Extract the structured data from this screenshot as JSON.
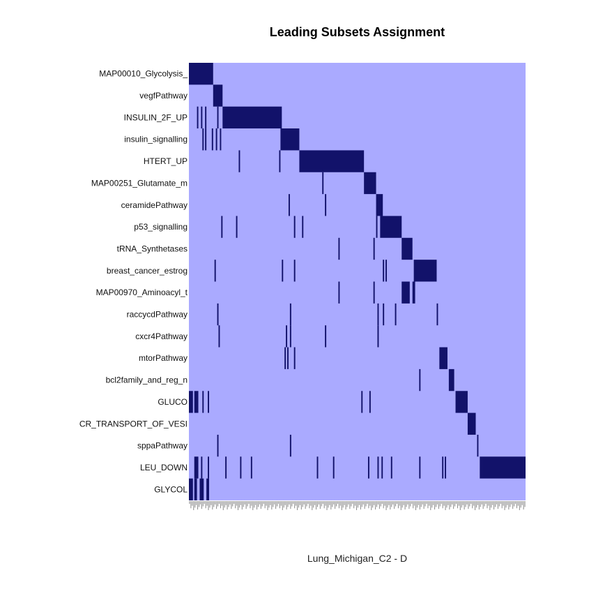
{
  "chart_data": {
    "type": "heatmap",
    "title": "Leading Subsets Assignment",
    "xlabel": "Lung_Michigan_C2 - D",
    "colors": {
      "background": "#aaaaff",
      "member": "#12126a",
      "tick": "#888888"
    },
    "n_genes": 250,
    "rows": [
      {
        "label": "MAP00010_Glycolysis_",
        "members": [
          [
            0,
            17
          ]
        ]
      },
      {
        "label": "vegfPathway",
        "members": [
          [
            18,
            24
          ]
        ]
      },
      {
        "label": "INSULIN_2F_UP",
        "members": [
          [
            6,
            6
          ],
          [
            9,
            9
          ],
          [
            12,
            12
          ],
          [
            21,
            21
          ],
          [
            25,
            68
          ]
        ]
      },
      {
        "label": "insulin_signalling",
        "members": [
          [
            10,
            10
          ],
          [
            12,
            12
          ],
          [
            17,
            17
          ],
          [
            20,
            20
          ],
          [
            23,
            23
          ],
          [
            68,
            81
          ]
        ]
      },
      {
        "label": "HTERT_UP",
        "members": [
          [
            37,
            37
          ],
          [
            67,
            67
          ],
          [
            82,
            129
          ]
        ]
      },
      {
        "label": "MAP00251_Glutamate_m",
        "members": [
          [
            99,
            99
          ],
          [
            130,
            138
          ]
        ]
      },
      {
        "label": "ceramidePathway",
        "members": [
          [
            74,
            74
          ],
          [
            101,
            101
          ],
          [
            139,
            143
          ]
        ]
      },
      {
        "label": "p53_signalling",
        "members": [
          [
            24,
            24
          ],
          [
            35,
            35
          ],
          [
            78,
            78
          ],
          [
            84,
            84
          ],
          [
            139,
            139
          ],
          [
            142,
            157
          ]
        ]
      },
      {
        "label": "tRNA_Synthetases",
        "members": [
          [
            111,
            111
          ],
          [
            137,
            137
          ],
          [
            158,
            165
          ]
        ]
      },
      {
        "label": "breast_cancer_estrog",
        "members": [
          [
            19,
            19
          ],
          [
            69,
            69
          ],
          [
            78,
            78
          ],
          [
            144,
            144
          ],
          [
            146,
            146
          ],
          [
            167,
            183
          ]
        ]
      },
      {
        "label": "MAP00970_Aminoacyl_t",
        "members": [
          [
            111,
            111
          ],
          [
            137,
            137
          ],
          [
            158,
            163
          ],
          [
            166,
            167
          ]
        ]
      },
      {
        "label": "raccycdPathway",
        "members": [
          [
            21,
            21
          ],
          [
            75,
            75
          ],
          [
            140,
            140
          ],
          [
            144,
            144
          ],
          [
            153,
            153
          ],
          [
            184,
            184
          ]
        ]
      },
      {
        "label": "cxcr4Pathway",
        "members": [
          [
            22,
            22
          ],
          [
            72,
            72
          ],
          [
            75,
            75
          ],
          [
            101,
            101
          ],
          [
            140,
            140
          ]
        ]
      },
      {
        "label": "mtorPathway",
        "members": [
          [
            71,
            71
          ],
          [
            73,
            73
          ],
          [
            78,
            78
          ],
          [
            186,
            191
          ]
        ]
      },
      {
        "label": "bcl2family_and_reg_n",
        "members": [
          [
            171,
            171
          ],
          [
            193,
            196
          ]
        ]
      },
      {
        "label": "GLUCO",
        "members": [
          [
            0,
            2
          ],
          [
            4,
            6
          ],
          [
            10,
            10
          ],
          [
            14,
            14
          ],
          [
            128,
            128
          ],
          [
            134,
            134
          ],
          [
            198,
            206
          ]
        ]
      },
      {
        "label": "CR_TRANSPORT_OF_VESI",
        "members": [
          [
            207,
            212
          ]
        ]
      },
      {
        "label": "sppaPathway",
        "members": [
          [
            21,
            21
          ],
          [
            75,
            75
          ],
          [
            214,
            214
          ]
        ]
      },
      {
        "label": "LEU_DOWN",
        "members": [
          [
            4,
            6
          ],
          [
            9,
            9
          ],
          [
            14,
            14
          ],
          [
            27,
            27
          ],
          [
            38,
            38
          ],
          [
            46,
            46
          ],
          [
            95,
            95
          ],
          [
            107,
            107
          ],
          [
            133,
            133
          ],
          [
            140,
            140
          ],
          [
            143,
            143
          ],
          [
            150,
            150
          ],
          [
            171,
            171
          ],
          [
            188,
            188
          ],
          [
            190,
            190
          ],
          [
            216,
            250
          ]
        ]
      },
      {
        "label": "GLYCOL",
        "members": [
          [
            0,
            2
          ],
          [
            4,
            5
          ],
          [
            8,
            10
          ],
          [
            13,
            14
          ]
        ]
      }
    ]
  }
}
